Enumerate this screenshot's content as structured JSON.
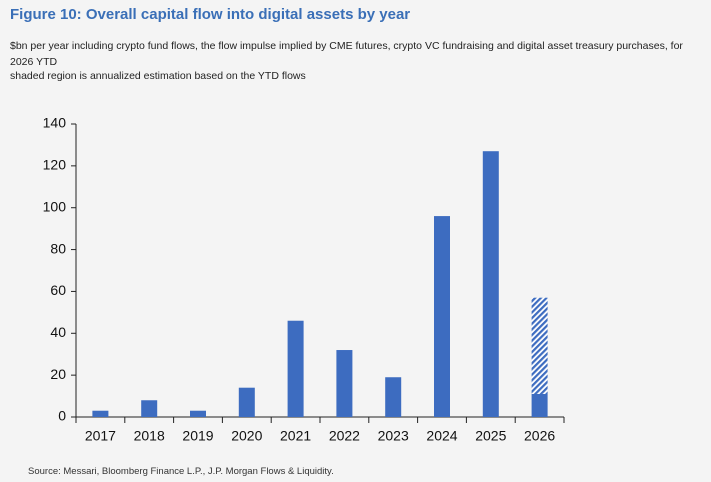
{
  "chart_data": {
    "type": "bar",
    "title": "Figure 10: Overall capital flow into digital assets by year",
    "subtitle": "$bn per year including crypto fund flows, the flow impulse implied by CME futures, crypto VC fundraising and digital asset treasury purchases, for 2026 YTD",
    "note": "shaded region is annualized estimation based on the YTD flows",
    "source": "Source: Messari, Bloomberg Finance L.P., J.P. Morgan Flows & Liquidity.",
    "categories": [
      "2017",
      "2018",
      "2019",
      "2020",
      "2021",
      "2022",
      "2023",
      "2024",
      "2025",
      "2026"
    ],
    "series": [
      {
        "color": "#3d6cc0",
        "values": [
          3,
          8,
          3,
          14,
          46,
          32,
          19,
          96,
          127,
          11
        ]
      },
      {
        "color": "#3d6cc0",
        "pattern": "hatch",
        "values": [
          null,
          null,
          null,
          null,
          null,
          null,
          null,
          null,
          null,
          46
        ]
      }
    ],
    "stacked": true,
    "ylim": [
      0,
      140
    ],
    "yticks": [
      0,
      20,
      40,
      60,
      80,
      100,
      120,
      140
    ],
    "grid": false
  }
}
